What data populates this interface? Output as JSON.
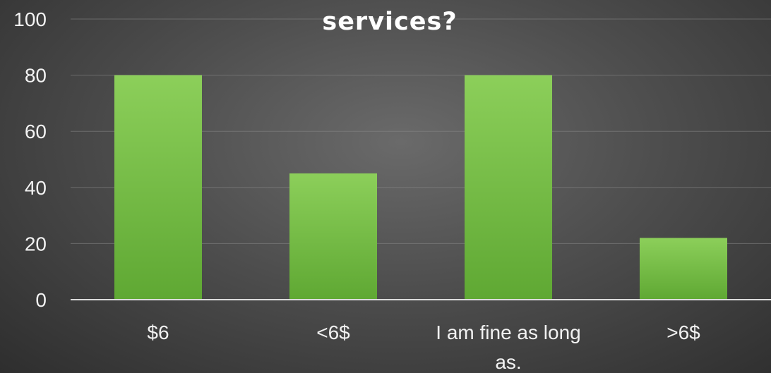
{
  "chart_data": {
    "type": "bar",
    "title": "services?",
    "categories": [
      "$6",
      "<6$",
      "I am fine as long as.",
      ">6$"
    ],
    "category_label_lines": [
      [
        "$6"
      ],
      [
        "<6$"
      ],
      [
        "I am fine as long",
        "as."
      ],
      [
        ">6$"
      ]
    ],
    "values": [
      80,
      45,
      80,
      22
    ],
    "ylim": [
      0,
      100
    ],
    "yticks": [
      "0",
      "20",
      "40",
      "60",
      "80",
      "100"
    ],
    "xlabel": "",
    "ylabel": "",
    "grid": true,
    "legend": "none",
    "colors": {
      "bar_top": "#8ccf5a",
      "bar_bottom": "#5fa833",
      "text": "#f2f2f2"
    }
  }
}
